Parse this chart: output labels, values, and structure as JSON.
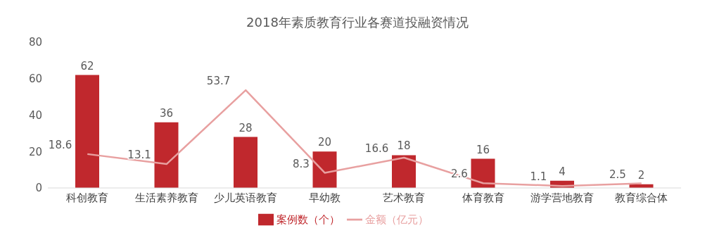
{
  "chart_data": {
    "type": "bar",
    "title": "2018年素质教育行业各赛道投融资情况",
    "categories": [
      "科创教育",
      "生活素养教育",
      "少儿英语教育",
      "早幼教",
      "艺术教育",
      "体育教育",
      "游学营地教育",
      "教育综合体"
    ],
    "series": [
      {
        "name": "案例数（个）",
        "color": "#c0282d",
        "values": [
          62,
          36,
          28,
          20,
          18,
          16,
          4,
          2
        ]
      },
      {
        "name": "金额（亿元）",
        "type": "line",
        "color": "#e8a0a0",
        "values": [
          18.6,
          13.1,
          53.7,
          8.3,
          16.6,
          2.6,
          1.1,
          2.5
        ]
      }
    ],
    "ylim": [
      0,
      80
    ],
    "yticks": [
      0,
      20,
      40,
      60,
      80
    ],
    "grid": false,
    "legend": "bottom",
    "data_labels": true,
    "marker": "none"
  }
}
